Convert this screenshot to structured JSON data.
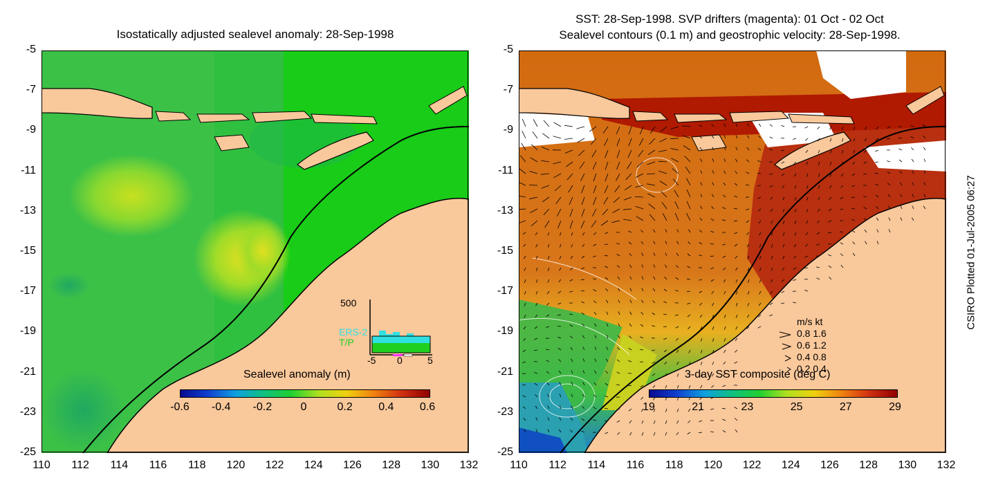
{
  "left_panel": {
    "title": "Isostatically adjusted sealevel anomaly: 28-Sep-1998",
    "colorbar": {
      "label": "Sealevel anomaly (m)",
      "ticks": [
        "-0.6",
        "-0.4",
        "-0.2",
        "0",
        "0.2",
        "0.4",
        "0.6"
      ],
      "range": [
        -0.6,
        0.6
      ]
    },
    "inset": {
      "ymax_label": "500",
      "series": [
        "ERS-2",
        "T/P"
      ],
      "series_colors": [
        "#30e0e0",
        "#20d020"
      ],
      "xticks": [
        "-5",
        "0",
        "5"
      ]
    }
  },
  "right_panel": {
    "title_line1": "SST: 28-Sep-1998. SVP drifters (magenta): 01 Oct - 02 Oct",
    "title_line2": "Sealevel contours (0.1 m) and geostrophic velocity: 28-Sep-1998.",
    "colorbar": {
      "label": "3-day SST composite (deg C)",
      "ticks": [
        "19",
        "21",
        "23",
        "25",
        "27",
        "29"
      ],
      "range": [
        19,
        29
      ]
    },
    "velocity_legend": {
      "header": "m/s  kt",
      "rows": [
        "0.8  1.6",
        "0.6  1.2",
        "0.4  0.8",
        "0.2  0.4"
      ]
    }
  },
  "axes": {
    "y_ticks": [
      "-5",
      "-7",
      "-9",
      "-11",
      "-13",
      "-15",
      "-17",
      "-19",
      "-21",
      "-23",
      "-25"
    ],
    "x_ticks": [
      "110",
      "112",
      "114",
      "116",
      "118",
      "120",
      "122",
      "124",
      "126",
      "128",
      "130",
      "132"
    ],
    "lat_range": [
      -25,
      -5
    ],
    "lon_range": [
      110,
      132
    ]
  },
  "side_note": "CSIRO Plotted 01-Jul-2005 06:27",
  "colors": {
    "land": "#f9c89b",
    "sea_green": "#1fd01f",
    "sst_red": "#b01a00",
    "sst_orange": "#d8661a"
  }
}
